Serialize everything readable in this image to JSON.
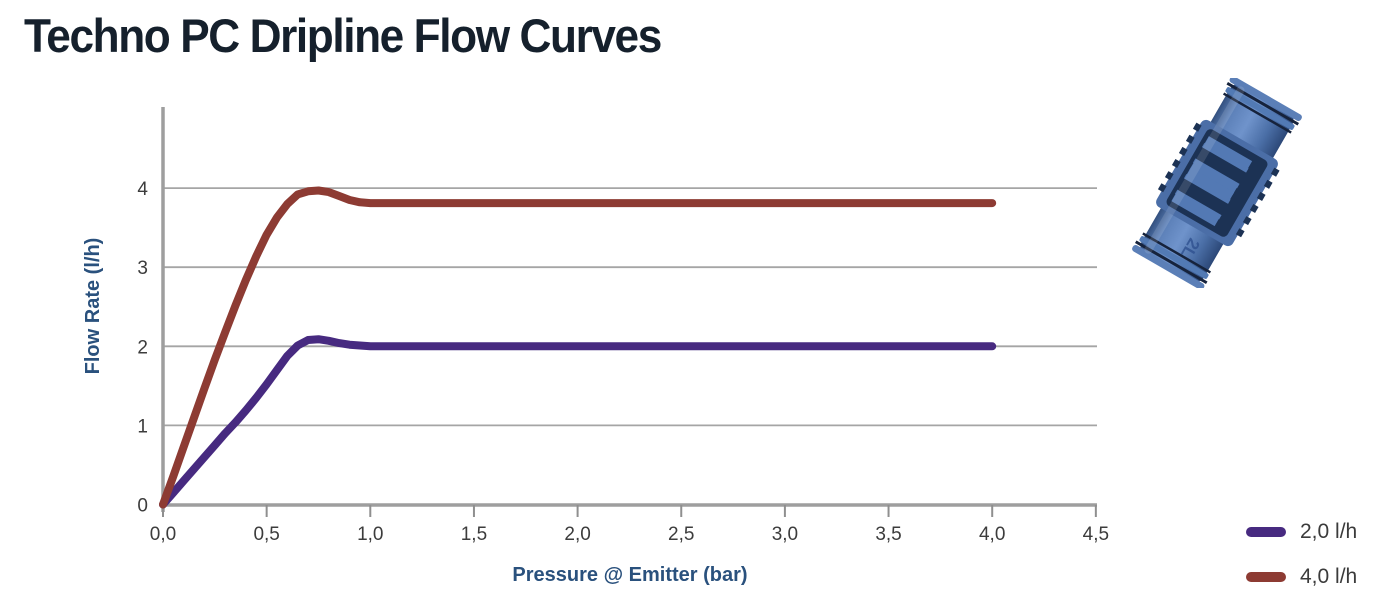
{
  "page": {
    "title": "Techno PC Dripline Flow Curves"
  },
  "chart_data": {
    "type": "line",
    "title": "Techno PC Dripline Flow Curves",
    "xlabel": "Pressure @ Emitter (bar)",
    "ylabel": "Flow Rate (l/h)",
    "xlim": [
      0,
      4.5
    ],
    "ylim": [
      0,
      5
    ],
    "x_tick_labels": [
      "0,0",
      "0,5",
      "1,0",
      "1,5",
      "2,0",
      "2,5",
      "3,0",
      "3,5",
      "4,0",
      "4,5"
    ],
    "x_tick_values": [
      0,
      0.5,
      1,
      1.5,
      2,
      2.5,
      3,
      3.5,
      4,
      4.5
    ],
    "y_tick_labels": [
      "0",
      "1",
      "2",
      "3",
      "4"
    ],
    "y_tick_values": [
      0,
      1,
      2,
      3,
      4
    ],
    "grid": "horizontal",
    "legend_position": "bottom-right-outside",
    "series": [
      {
        "name": "2,0 l/h",
        "color": "#472a80",
        "peak": [
          0.7,
          2.09
        ],
        "flat_value": 2.0,
        "points": [
          [
            0,
            0
          ],
          [
            0.05,
            0.15
          ],
          [
            0.1,
            0.3
          ],
          [
            0.15,
            0.45
          ],
          [
            0.2,
            0.6
          ],
          [
            0.25,
            0.75
          ],
          [
            0.3,
            0.9
          ],
          [
            0.35,
            1.04
          ],
          [
            0.4,
            1.19
          ],
          [
            0.45,
            1.35
          ],
          [
            0.5,
            1.52
          ],
          [
            0.55,
            1.7
          ],
          [
            0.6,
            1.88
          ],
          [
            0.65,
            2.01
          ],
          [
            0.7,
            2.08
          ],
          [
            0.75,
            2.09
          ],
          [
            0.8,
            2.07
          ],
          [
            0.85,
            2.04
          ],
          [
            0.9,
            2.02
          ],
          [
            0.95,
            2.01
          ],
          [
            1,
            2
          ],
          [
            1.5,
            2
          ],
          [
            2,
            2
          ],
          [
            2.5,
            2
          ],
          [
            3,
            2
          ],
          [
            3.5,
            2
          ],
          [
            4,
            2
          ]
        ]
      },
      {
        "name": "4,0 l/h",
        "color": "#8d3b33",
        "peak": [
          0.72,
          3.97
        ],
        "flat_value": 3.81,
        "points": [
          [
            0,
            0
          ],
          [
            0.05,
            0.36
          ],
          [
            0.1,
            0.73
          ],
          [
            0.15,
            1.1
          ],
          [
            0.2,
            1.47
          ],
          [
            0.25,
            1.83
          ],
          [
            0.3,
            2.18
          ],
          [
            0.35,
            2.52
          ],
          [
            0.4,
            2.84
          ],
          [
            0.45,
            3.14
          ],
          [
            0.5,
            3.41
          ],
          [
            0.55,
            3.63
          ],
          [
            0.6,
            3.8
          ],
          [
            0.65,
            3.92
          ],
          [
            0.7,
            3.96
          ],
          [
            0.75,
            3.97
          ],
          [
            0.8,
            3.95
          ],
          [
            0.85,
            3.9
          ],
          [
            0.9,
            3.85
          ],
          [
            0.95,
            3.82
          ],
          [
            1,
            3.81
          ],
          [
            1.5,
            3.81
          ],
          [
            2,
            3.81
          ],
          [
            2.5,
            3.81
          ],
          [
            3,
            3.81
          ],
          [
            3.5,
            3.81
          ],
          [
            4,
            3.81
          ]
        ]
      }
    ]
  },
  "legend": {
    "items": [
      {
        "label": "2,0 l/h",
        "swatch_color": "#472a80"
      },
      {
        "label": "4,0 l/h",
        "swatch_color": "#8d3b33"
      }
    ]
  },
  "product_image": {
    "description": "blue inline PC dripper with labyrinth channel",
    "label_text": "2L",
    "body_color": "#4f74b0",
    "labyrinth_color": "#1c3254"
  },
  "colors": {
    "title": "#15202c",
    "axis_title": "#2a517d",
    "tick_label": "#3c3c3c",
    "axis_line": "#9e9e9e",
    "gridline": "#a5a5a5",
    "background": "#ffffff"
  }
}
